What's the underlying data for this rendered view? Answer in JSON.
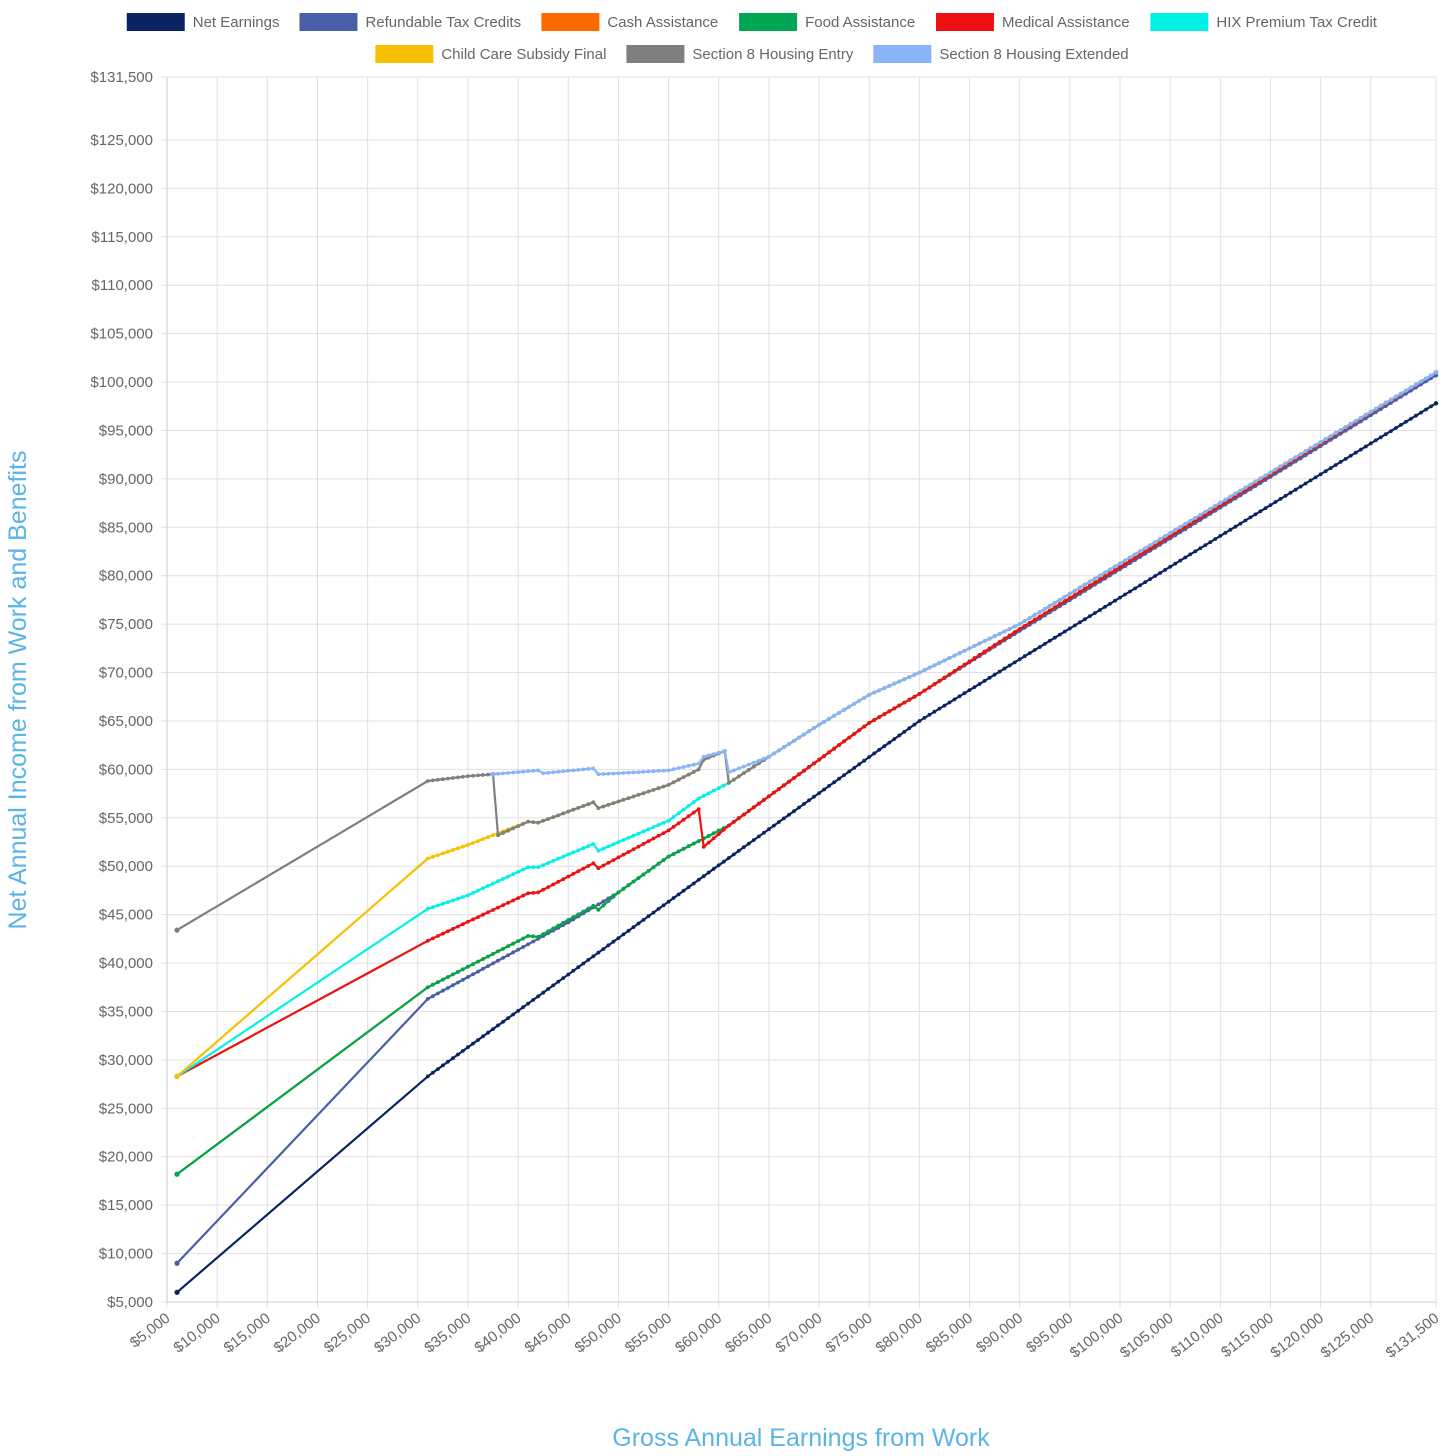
{
  "chart_data": {
    "type": "line",
    "xlabel": "Gross Annual Earnings from Work",
    "ylabel": "Net Annual Income from Work and Benefits",
    "xlim": [
      5000,
      131500
    ],
    "ylim": [
      5000,
      131500
    ],
    "x_ticks": [
      5000,
      10000,
      15000,
      20000,
      25000,
      30000,
      35000,
      40000,
      45000,
      50000,
      55000,
      60000,
      65000,
      70000,
      75000,
      80000,
      85000,
      90000,
      95000,
      100000,
      105000,
      110000,
      115000,
      120000,
      125000,
      131500
    ],
    "y_ticks": [
      5000,
      10000,
      15000,
      20000,
      25000,
      30000,
      35000,
      40000,
      45000,
      50000,
      55000,
      60000,
      65000,
      70000,
      75000,
      80000,
      85000,
      90000,
      95000,
      100000,
      105000,
      110000,
      115000,
      120000,
      125000,
      131500
    ],
    "x_tick_labels": [
      "$5,000",
      "$10,000",
      "$15,000",
      "$20,000",
      "$25,000",
      "$30,000",
      "$35,000",
      "$40,000",
      "$45,000",
      "$50,000",
      "$55,000",
      "$60,000",
      "$65,000",
      "$70,000",
      "$75,000",
      "$80,000",
      "$85,000",
      "$90,000",
      "$95,000",
      "$100,000",
      "$105,000",
      "$110,000",
      "$115,000",
      "$120,000",
      "$125,000",
      "$131,500"
    ],
    "y_tick_labels": [
      "$5,000",
      "$10,000",
      "$15,000",
      "$20,000",
      "$25,000",
      "$30,000",
      "$35,000",
      "$40,000",
      "$45,000",
      "$50,000",
      "$55,000",
      "$60,000",
      "$65,000",
      "$70,000",
      "$75,000",
      "$80,000",
      "$85,000",
      "$90,000",
      "$95,000",
      "$100,000",
      "$105,000",
      "$110,000",
      "$115,000",
      "$120,000",
      "$125,000",
      "$131,500"
    ],
    "grid": true,
    "legend_position": "top",
    "series": [
      {
        "name": "Net Earnings",
        "color": "#0a2463",
        "points": [
          [
            6000,
            6000
          ],
          [
            31000,
            28300
          ],
          [
            60000,
            50100
          ],
          [
            80000,
            65000
          ],
          [
            131500,
            97800
          ]
        ]
      },
      {
        "name": "Refundable Tax Credits",
        "color": "#4a5ea8",
        "points": [
          [
            6000,
            9000
          ],
          [
            31000,
            36300
          ],
          [
            45000,
            44200
          ],
          [
            50000,
            47300
          ],
          [
            55000,
            51000
          ],
          [
            58000,
            52600
          ],
          [
            61000,
            54200
          ],
          [
            70000,
            61000
          ],
          [
            75000,
            64800
          ],
          [
            80000,
            67800
          ],
          [
            90000,
            74300
          ],
          [
            131500,
            100700
          ]
        ]
      },
      {
        "name": "Cash Assistance",
        "color": "#ff6a00",
        "points": [
          [
            6000,
            18200
          ],
          [
            31000,
            37500
          ],
          [
            41000,
            42800
          ],
          [
            42000,
            42700
          ],
          [
            47500,
            45900
          ],
          [
            48000,
            45500
          ],
          [
            50000,
            47300
          ],
          [
            55000,
            51000
          ],
          [
            58000,
            52600
          ],
          [
            61000,
            54200
          ],
          [
            70000,
            61000
          ],
          [
            75000,
            64800
          ],
          [
            80000,
            67800
          ],
          [
            90000,
            74500
          ],
          [
            131500,
            101000
          ]
        ]
      },
      {
        "name": "Food Assistance",
        "color": "#00a651",
        "points": [
          [
            6000,
            18200
          ],
          [
            31000,
            37500
          ],
          [
            41000,
            42800
          ],
          [
            42000,
            42700
          ],
          [
            47500,
            45900
          ],
          [
            48000,
            45500
          ],
          [
            50000,
            47300
          ],
          [
            55000,
            51000
          ],
          [
            58000,
            52600
          ],
          [
            61000,
            54200
          ],
          [
            70000,
            61000
          ],
          [
            75000,
            64800
          ],
          [
            80000,
            67800
          ],
          [
            90000,
            74500
          ],
          [
            131500,
            101000
          ]
        ]
      },
      {
        "name": "Medical Assistance",
        "color": "#ee1111",
        "points": [
          [
            6000,
            28300
          ],
          [
            31000,
            42300
          ],
          [
            41000,
            47200
          ],
          [
            42000,
            47300
          ],
          [
            47500,
            50300
          ],
          [
            48000,
            49800
          ],
          [
            55000,
            53700
          ],
          [
            58000,
            55900
          ],
          [
            58500,
            52000
          ],
          [
            61000,
            54200
          ],
          [
            70000,
            61000
          ],
          [
            75000,
            64800
          ],
          [
            80000,
            67800
          ],
          [
            90000,
            74500
          ],
          [
            131500,
            101000
          ]
        ]
      },
      {
        "name": "HIX Premium Tax Credit",
        "color": "#00f2e6",
        "points": [
          [
            6000,
            28300
          ],
          [
            31000,
            45600
          ],
          [
            35000,
            47000
          ],
          [
            41000,
            49900
          ],
          [
            42000,
            49900
          ],
          [
            47500,
            52300
          ],
          [
            48000,
            51600
          ],
          [
            55000,
            54700
          ],
          [
            58000,
            57000
          ],
          [
            61000,
            58600
          ],
          [
            65000,
            61300
          ],
          [
            70000,
            64600
          ],
          [
            75000,
            67700
          ],
          [
            80000,
            70000
          ],
          [
            90000,
            75000
          ],
          [
            131500,
            101000
          ]
        ]
      },
      {
        "name": "Child Care Subsidy Final",
        "color": "#f7c000",
        "points": [
          [
            6000,
            28300
          ],
          [
            31000,
            50800
          ],
          [
            35000,
            52200
          ],
          [
            41000,
            54600
          ],
          [
            42000,
            54500
          ],
          [
            47500,
            56600
          ],
          [
            48000,
            56000
          ],
          [
            55000,
            58400
          ],
          [
            58000,
            60000
          ],
          [
            58500,
            61000
          ],
          [
            60600,
            61900
          ],
          [
            61000,
            58600
          ],
          [
            65000,
            61300
          ],
          [
            70000,
            64600
          ],
          [
            75000,
            67700
          ],
          [
            80000,
            70000
          ],
          [
            90000,
            75000
          ],
          [
            131500,
            101000
          ]
        ]
      },
      {
        "name": "Section 8 Housing Entry",
        "color": "#7f7f7f",
        "points": [
          [
            6000,
            43400
          ],
          [
            31000,
            58800
          ],
          [
            35000,
            59300
          ],
          [
            37500,
            59500
          ],
          [
            38000,
            53200
          ],
          [
            41000,
            54600
          ],
          [
            42000,
            54500
          ],
          [
            47500,
            56600
          ],
          [
            48000,
            56000
          ],
          [
            55000,
            58400
          ],
          [
            58000,
            60000
          ],
          [
            58500,
            61000
          ],
          [
            60600,
            61900
          ],
          [
            61000,
            58600
          ],
          [
            65000,
            61300
          ],
          [
            70000,
            64600
          ],
          [
            75000,
            67700
          ],
          [
            80000,
            70000
          ],
          [
            90000,
            75000
          ],
          [
            131500,
            101000
          ]
        ]
      },
      {
        "name": "Section 8 Housing Extended",
        "color": "#8ab4f8",
        "points": [
          [
            37500,
            59500
          ],
          [
            42000,
            59900
          ],
          [
            42500,
            59600
          ],
          [
            47500,
            60100
          ],
          [
            48000,
            59500
          ],
          [
            50000,
            59600
          ],
          [
            55000,
            59900
          ],
          [
            58000,
            60600
          ],
          [
            58500,
            61300
          ],
          [
            60600,
            61900
          ],
          [
            61000,
            59700
          ],
          [
            65000,
            61300
          ],
          [
            70000,
            64600
          ],
          [
            75000,
            67700
          ],
          [
            80000,
            70000
          ],
          [
            90000,
            75000
          ],
          [
            131500,
            101000
          ]
        ]
      }
    ]
  }
}
